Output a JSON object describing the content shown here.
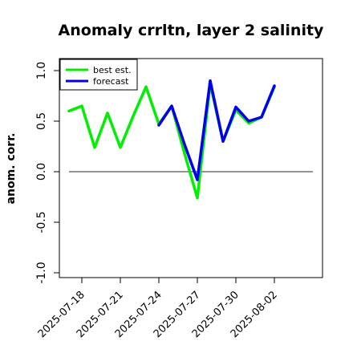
{
  "chart_data": {
    "type": "line",
    "title": "Anomaly crrltn, layer 2 salinity",
    "xlabel": "",
    "ylabel": "anom. corr.",
    "ylim": [
      -1.0,
      1.0
    ],
    "yticks": [
      "-1.0",
      "-0.5",
      "0.0",
      "0.5",
      "1.0"
    ],
    "ytick_values": [
      -1.0,
      -0.5,
      0.0,
      0.5,
      1.0
    ],
    "xticks": [
      "2025-07-18",
      "2025-07-21",
      "2025-07-24",
      "2025-07-27",
      "2025-07-30",
      "2025-08-02"
    ],
    "xtick_days": [
      18,
      21,
      24,
      27,
      30,
      33
    ],
    "highlight_tick": "2025-07-24",
    "highlight_color": "#228b22",
    "reference_line": 0.0,
    "legend_position": "top-left",
    "series": [
      {
        "name": "best est.",
        "color": "#00ee00",
        "x": [
          "2025-07-17",
          "2025-07-18",
          "2025-07-19",
          "2025-07-20",
          "2025-07-21",
          "2025-07-22",
          "2025-07-23",
          "2025-07-24",
          "2025-07-25",
          "2025-07-26",
          "2025-07-27",
          "2025-07-28",
          "2025-07-29",
          "2025-07-30",
          "2025-07-31",
          "2025-08-01",
          "2025-08-02"
        ],
        "values": [
          0.6,
          0.65,
          0.24,
          0.58,
          0.24,
          0.55,
          0.84,
          0.47,
          0.65,
          0.18,
          -0.26,
          0.87,
          0.3,
          0.61,
          0.48,
          0.54,
          0.84
        ]
      },
      {
        "name": "forecast",
        "color": "#0000ee",
        "x": [
          "2025-07-24",
          "2025-07-25",
          "2025-07-26",
          "2025-07-27",
          "2025-07-28",
          "2025-07-29",
          "2025-07-30",
          "2025-07-31",
          "2025-08-01",
          "2025-08-02"
        ],
        "values": [
          0.46,
          0.65,
          0.27,
          -0.08,
          0.9,
          0.3,
          0.64,
          0.5,
          0.54,
          0.85
        ]
      }
    ]
  }
}
